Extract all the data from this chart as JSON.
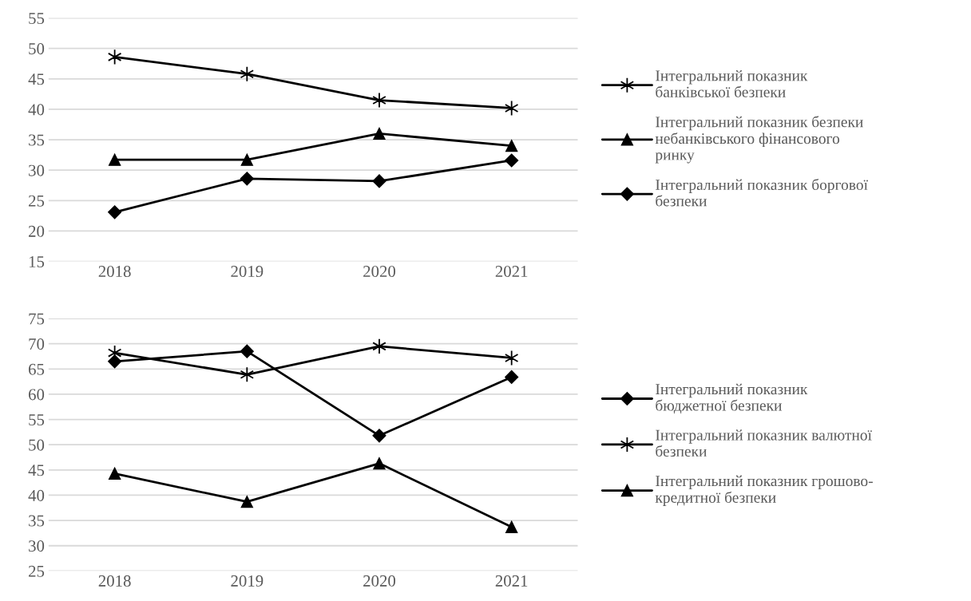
{
  "chart_data": [
    {
      "type": "line",
      "categories": [
        "2018",
        "2019",
        "2020",
        "2021"
      ],
      "ylim": [
        15,
        55
      ],
      "yticks": [
        15,
        20,
        25,
        30,
        35,
        40,
        45,
        50,
        55
      ],
      "grid": "y",
      "legend": "right",
      "series": [
        {
          "name": "Інтегральний показник\nбанківської безпеки",
          "color": "#000000",
          "marker": "cross",
          "values": [
            48.6,
            45.8,
            41.5,
            40.2
          ]
        },
        {
          "name": "Інтегральний показник безпеки\nнебанківського фінансового\nринку",
          "color": "#000000",
          "marker": "triangle",
          "values": [
            31.7,
            31.7,
            36.0,
            34.0
          ]
        },
        {
          "name": "Інтегральний показник боргової\nбезпеки",
          "color": "#000000",
          "marker": "diamond",
          "values": [
            23.1,
            28.6,
            28.2,
            31.6
          ]
        }
      ]
    },
    {
      "type": "line",
      "categories": [
        "2018",
        "2019",
        "2020",
        "2021"
      ],
      "ylim": [
        25,
        75
      ],
      "yticks": [
        25,
        30,
        35,
        40,
        45,
        50,
        55,
        60,
        65,
        70,
        75
      ],
      "grid": "y",
      "legend": "right",
      "series": [
        {
          "name": "Інтегральний показник\nбюджетної безпеки",
          "color": "#000000",
          "marker": "diamond",
          "values": [
            66.5,
            68.5,
            51.8,
            63.4
          ]
        },
        {
          "name": "Інтегральний показник валютної\nбезпеки",
          "color": "#000000",
          "marker": "cross",
          "values": [
            68.2,
            63.9,
            69.5,
            67.2
          ]
        },
        {
          "name": "Інтегральний показник грошово-\nкредитної безпеки",
          "color": "#000000",
          "marker": "triangle",
          "values": [
            44.3,
            38.7,
            46.3,
            33.7
          ]
        }
      ]
    }
  ]
}
